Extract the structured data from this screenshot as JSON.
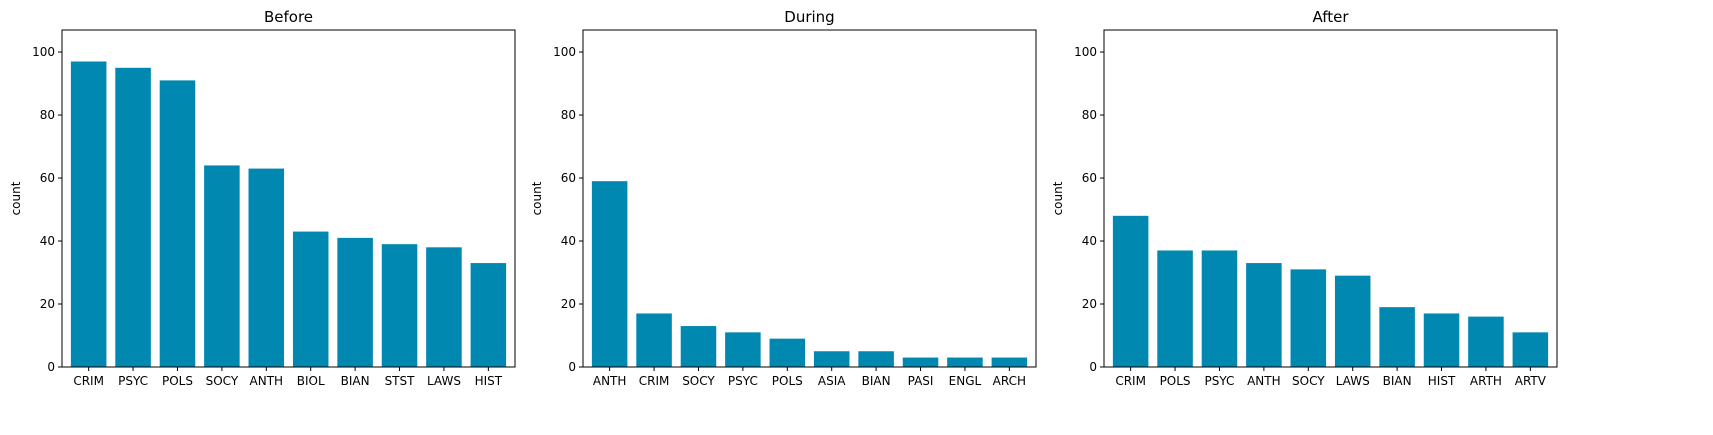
{
  "chart_data": [
    {
      "type": "bar",
      "title": "Before",
      "ylabel": "count",
      "xlabel": "",
      "ylim": [
        0,
        107
      ],
      "yticks": [
        0,
        20,
        40,
        60,
        80,
        100
      ],
      "categories": [
        "CRIM",
        "PSYC",
        "POLS",
        "SOCY",
        "ANTH",
        "BIOL",
        "BIAN",
        "STST",
        "LAWS",
        "HIST"
      ],
      "values": [
        97,
        95,
        91,
        64,
        63,
        43,
        41,
        39,
        38,
        33
      ],
      "color": "#0088b0"
    },
    {
      "type": "bar",
      "title": "During",
      "ylabel": "count",
      "xlabel": "",
      "ylim": [
        0,
        107
      ],
      "yticks": [
        0,
        20,
        40,
        60,
        80,
        100
      ],
      "categories": [
        "ANTH",
        "CRIM",
        "SOCY",
        "PSYC",
        "POLS",
        "ASIA",
        "BIAN",
        "PASI",
        "ENGL",
        "ARCH"
      ],
      "values": [
        59,
        17,
        13,
        11,
        9,
        5,
        5,
        3,
        3,
        3
      ],
      "color": "#0088b0"
    },
    {
      "type": "bar",
      "title": "After",
      "ylabel": "count",
      "xlabel": "",
      "ylim": [
        0,
        107
      ],
      "yticks": [
        0,
        20,
        40,
        60,
        80,
        100
      ],
      "categories": [
        "CRIM",
        "POLS",
        "PSYC",
        "ANTH",
        "SOCY",
        "LAWS",
        "BIAN",
        "HIST",
        "ARTH",
        "ARTV"
      ],
      "values": [
        48,
        37,
        37,
        33,
        31,
        29,
        19,
        17,
        16,
        11
      ],
      "color": "#0088b0"
    }
  ]
}
